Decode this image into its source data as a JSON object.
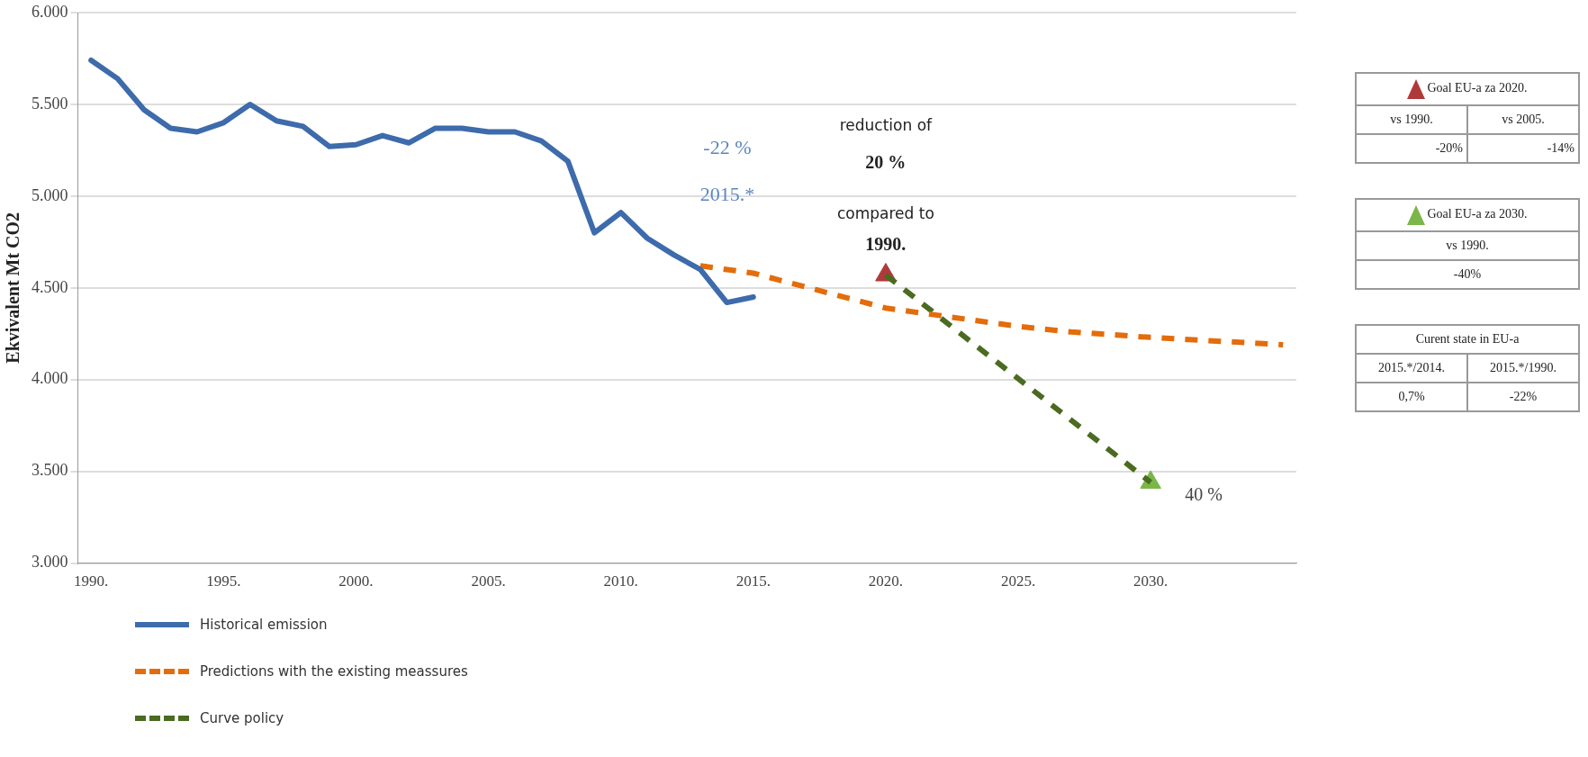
{
  "chart_data": [
    {
      "type": "line",
      "ylabel": "Ekvivalent Mt CO2",
      "xlim": [
        1989.5,
        2035.5
      ],
      "ylim": [
        3000,
        6000
      ],
      "xticks": [
        {
          "value": 1990,
          "label": "1990."
        },
        {
          "value": 1995,
          "label": "1995."
        },
        {
          "value": 2000,
          "label": "2000."
        },
        {
          "value": 2005,
          "label": "2005."
        },
        {
          "value": 2010,
          "label": "2010."
        },
        {
          "value": 2015,
          "label": "2015."
        },
        {
          "value": 2020,
          "label": "2020."
        },
        {
          "value": 2025,
          "label": "2025."
        },
        {
          "value": 2030,
          "label": "2030."
        }
      ],
      "yticks": [
        {
          "value": 3000,
          "label": "3.000"
        },
        {
          "value": 3500,
          "label": "3.500"
        },
        {
          "value": 4000,
          "label": "4.000"
        },
        {
          "value": 4500,
          "label": "4.500"
        },
        {
          "value": 5000,
          "label": "5.000"
        },
        {
          "value": 5500,
          "label": "5.500"
        },
        {
          "value": 6000,
          "label": "6.000"
        }
      ],
      "grid": "y",
      "legend": "bottom left",
      "series": [
        {
          "name": "Historical emission",
          "color": "#3d6bab",
          "line_style": "solid",
          "marker": "none",
          "x": [
            1990,
            1991,
            1992,
            1993,
            1994,
            1995,
            1996,
            1997,
            1998,
            1999,
            2000,
            2001,
            2002,
            2003,
            2004,
            2005,
            2006,
            2007,
            2008,
            2009,
            2010,
            2011,
            2012,
            2013,
            2014,
            2015
          ],
          "values": [
            5740,
            5640,
            5470,
            5370,
            5350,
            5400,
            5500,
            5410,
            5380,
            5270,
            5280,
            5330,
            5290,
            5370,
            5370,
            5350,
            5350,
            5300,
            5190,
            4800,
            4910,
            4770,
            4680,
            4600,
            4420,
            4450
          ]
        },
        {
          "name": "Predictions with the existing meassures",
          "color": "#e46c0a",
          "line_style": "dashed",
          "marker": "none",
          "x": [
            2013,
            2015,
            2020,
            2022,
            2025,
            2027,
            2030,
            2035
          ],
          "values": [
            4620,
            4580,
            4390,
            4350,
            4290,
            4260,
            4230,
            4190
          ]
        },
        {
          "name": "Curve  policy",
          "color": "#4a6b20",
          "line_style": "dashed",
          "marker": "none",
          "x": [
            2020,
            2030
          ],
          "values": [
            4570,
            3440
          ]
        },
        {
          "type": "scatter",
          "color": "#b03a3a",
          "marker": "triangle",
          "x": [
            2020
          ],
          "values": [
            4570
          ]
        },
        {
          "type": "scatter",
          "color": "#7ab648",
          "marker": "triangle",
          "x": [
            2030
          ],
          "values": [
            3440
          ]
        }
      ],
      "annotations": [
        "-22 %",
        "2015.*",
        "reduction of",
        "20 %",
        "compared to",
        "1990.",
        "40 %"
      ]
    },
    {
      "type": "other",
      "annotations": [
        "Goal EU-a za 2020.",
        "vs 1990.",
        "vs 2005.",
        "-20%",
        "-14%"
      ]
    },
    {
      "type": "other",
      "annotations": [
        "Goal EU-a za 2030.",
        "vs 1990.",
        "-40%"
      ]
    },
    {
      "type": "other",
      "annotations": [
        "Curent state in  EU-a",
        "2015.*/2014.",
        "2015.*/1990.",
        "0,7%",
        "-22%"
      ]
    }
  ]
}
